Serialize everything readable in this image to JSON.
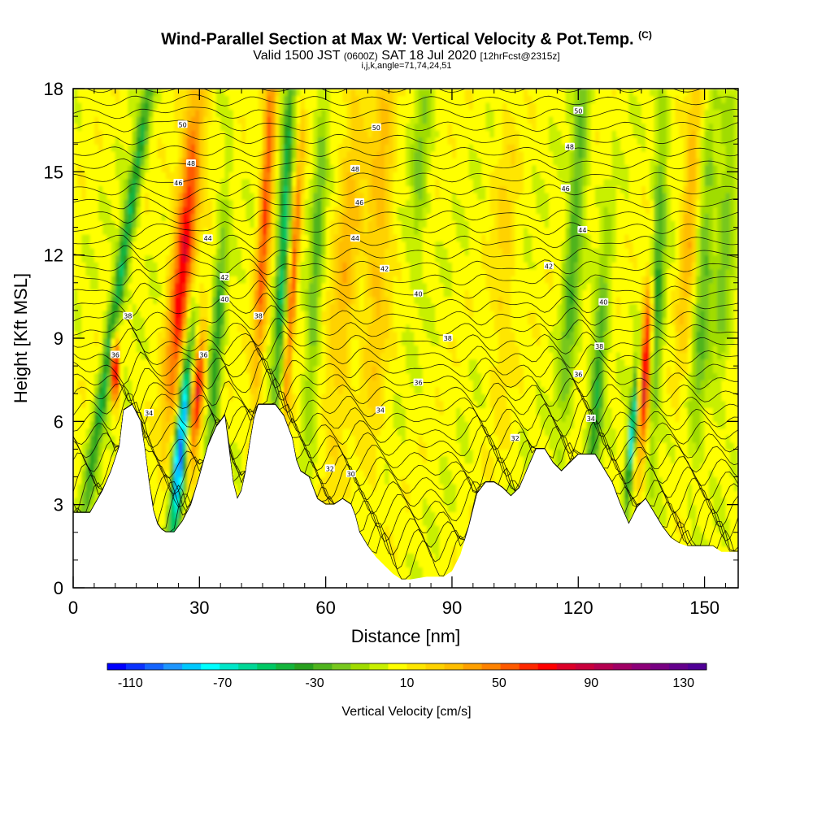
{
  "header": {
    "title": "Wind-Parallel Section at Max W: Vertical Velocity & Pot.Temp.",
    "copyright": "(C)",
    "valid_a": "Valid 1500 JST",
    "valid_zulu": "(0600Z)",
    "valid_b": "SAT 18 Jul 2020",
    "forecast": "[12hrFcst@2315z]",
    "indices": "i,j,k,angle=71,74,24,51"
  },
  "chart_data": {
    "type": "heatmap",
    "xlabel": "Distance [nm]",
    "ylabel": "Height [Kft MSL]",
    "xlim": [
      0,
      158
    ],
    "ylim": [
      0,
      18
    ],
    "x_ticks": [
      0,
      30,
      60,
      90,
      120,
      150
    ],
    "y_ticks": [
      0,
      3,
      6,
      9,
      12,
      15,
      18
    ],
    "colorbar": {
      "label": "Vertical Velocity [cm/s]",
      "tick_labels": [
        "-110",
        "-70",
        "-30",
        "10",
        "50",
        "90",
        "130"
      ],
      "tick_values": [
        -110,
        -70,
        -30,
        10,
        50,
        90,
        130
      ],
      "range": [
        -120,
        140
      ],
      "colors": [
        "#0000ff",
        "#0a32ff",
        "#1464ff",
        "#1e96ff",
        "#00c8ff",
        "#00ffff",
        "#00e6c8",
        "#00d796",
        "#00c864",
        "#14b43c",
        "#28a01e",
        "#50b41e",
        "#78c81e",
        "#a0dc00",
        "#c8f000",
        "#ffff00",
        "#ffe600",
        "#ffd200",
        "#ffbe00",
        "#ffa000",
        "#ff8200",
        "#ff5a00",
        "#ff2800",
        "#ff0000",
        "#dc0028",
        "#c8003c",
        "#b40050",
        "#a00064",
        "#8c0078",
        "#780082",
        "#64008c",
        "#500096"
      ]
    },
    "terrain_kft": [
      [
        0,
        2.7
      ],
      [
        4,
        2.7
      ],
      [
        7,
        3.5
      ],
      [
        9,
        4.2
      ],
      [
        11,
        5.1
      ],
      [
        12,
        6.4
      ],
      [
        14,
        6.6
      ],
      [
        16,
        6.0
      ],
      [
        17,
        5.0
      ],
      [
        18,
        3.8
      ],
      [
        19,
        2.8
      ],
      [
        20,
        2.3
      ],
      [
        21,
        2.1
      ],
      [
        22,
        2.0
      ],
      [
        24,
        2.0
      ],
      [
        26,
        2.4
      ],
      [
        28,
        3.0
      ],
      [
        30,
        4.0
      ],
      [
        32,
        5.1
      ],
      [
        34,
        5.8
      ],
      [
        36,
        6.2
      ],
      [
        37,
        5.0
      ],
      [
        38,
        3.8
      ],
      [
        39,
        3.2
      ],
      [
        40,
        3.5
      ],
      [
        41,
        4.2
      ],
      [
        42,
        5.2
      ],
      [
        43,
        6.1
      ],
      [
        44,
        6.6
      ],
      [
        46,
        6.6
      ],
      [
        48,
        6.6
      ],
      [
        50,
        6.2
      ],
      [
        52,
        5.4
      ],
      [
        53,
        4.6
      ],
      [
        54,
        4.2
      ],
      [
        56,
        4.0
      ],
      [
        57,
        3.6
      ],
      [
        58,
        3.2
      ],
      [
        60,
        3.0
      ],
      [
        62,
        3.0
      ],
      [
        64,
        3.2
      ],
      [
        66,
        3.0
      ],
      [
        67,
        2.6
      ],
      [
        68,
        2.0
      ],
      [
        70,
        1.5
      ],
      [
        72,
        1.1
      ],
      [
        74,
        0.8
      ],
      [
        76,
        0.5
      ],
      [
        78,
        0.3
      ],
      [
        80,
        0.3
      ],
      [
        84,
        0.4
      ],
      [
        86,
        0.4
      ],
      [
        88,
        0.4
      ],
      [
        90,
        0.6
      ],
      [
        92,
        1.2
      ],
      [
        94,
        2.2
      ],
      [
        96,
        3.4
      ],
      [
        98,
        3.8
      ],
      [
        100,
        3.8
      ],
      [
        102,
        3.6
      ],
      [
        104,
        3.3
      ],
      [
        106,
        3.6
      ],
      [
        108,
        4.3
      ],
      [
        110,
        5.0
      ],
      [
        112,
        5.0
      ],
      [
        114,
        4.5
      ],
      [
        116,
        4.2
      ],
      [
        118,
        4.5
      ],
      [
        120,
        4.8
      ],
      [
        124,
        4.8
      ],
      [
        126,
        4.3
      ],
      [
        128,
        3.8
      ],
      [
        130,
        3.0
      ],
      [
        132,
        2.3
      ],
      [
        134,
        2.9
      ],
      [
        136,
        3.2
      ],
      [
        138,
        2.7
      ],
      [
        140,
        2.2
      ],
      [
        142,
        1.8
      ],
      [
        144,
        1.6
      ],
      [
        146,
        1.5
      ],
      [
        148,
        1.5
      ],
      [
        150,
        1.5
      ],
      [
        152,
        1.5
      ],
      [
        154,
        1.3
      ],
      [
        156,
        1.3
      ],
      [
        158,
        1.3
      ]
    ],
    "contours": {
      "name": "Potential Temperature",
      "labels": [
        {
          "text": "50",
          "x": 26,
          "y": 16.7
        },
        {
          "text": "50",
          "x": 72,
          "y": 16.6
        },
        {
          "text": "50",
          "x": 120,
          "y": 17.2
        },
        {
          "text": "48",
          "x": 28,
          "y": 15.3
        },
        {
          "text": "48",
          "x": 67,
          "y": 15.1
        },
        {
          "text": "48",
          "x": 118,
          "y": 15.9
        },
        {
          "text": "46",
          "x": 25,
          "y": 14.6
        },
        {
          "text": "46",
          "x": 68,
          "y": 13.9
        },
        {
          "text": "46",
          "x": 117,
          "y": 14.4
        },
        {
          "text": "44",
          "x": 32,
          "y": 12.6
        },
        {
          "text": "44",
          "x": 67,
          "y": 12.6
        },
        {
          "text": "44",
          "x": 121,
          "y": 12.9
        },
        {
          "text": "42",
          "x": 36,
          "y": 11.2
        },
        {
          "text": "42",
          "x": 74,
          "y": 11.5
        },
        {
          "text": "42",
          "x": 113,
          "y": 11.6
        },
        {
          "text": "40",
          "x": 36,
          "y": 10.4
        },
        {
          "text": "40",
          "x": 82,
          "y": 10.6
        },
        {
          "text": "40",
          "x": 126,
          "y": 10.3
        },
        {
          "text": "38",
          "x": 13,
          "y": 9.8
        },
        {
          "text": "38",
          "x": 44,
          "y": 9.8
        },
        {
          "text": "38",
          "x": 89,
          "y": 9.0
        },
        {
          "text": "38",
          "x": 125,
          "y": 8.7
        },
        {
          "text": "36",
          "x": 10,
          "y": 8.4
        },
        {
          "text": "36",
          "x": 31,
          "y": 8.4
        },
        {
          "text": "36",
          "x": 82,
          "y": 7.4
        },
        {
          "text": "36",
          "x": 120,
          "y": 7.7
        },
        {
          "text": "34",
          "x": 18,
          "y": 6.3
        },
        {
          "text": "34",
          "x": 73,
          "y": 6.4
        },
        {
          "text": "34",
          "x": 123,
          "y": 6.1
        },
        {
          "text": "32",
          "x": 105,
          "y": 5.4
        },
        {
          "text": "32",
          "x": 61,
          "y": 4.3
        },
        {
          "text": "30",
          "x": 66,
          "y": 4.1
        }
      ]
    },
    "notes": "Filled contours of vertical velocity (cm/s) with potential temperature contour lines; white area below terrain"
  }
}
